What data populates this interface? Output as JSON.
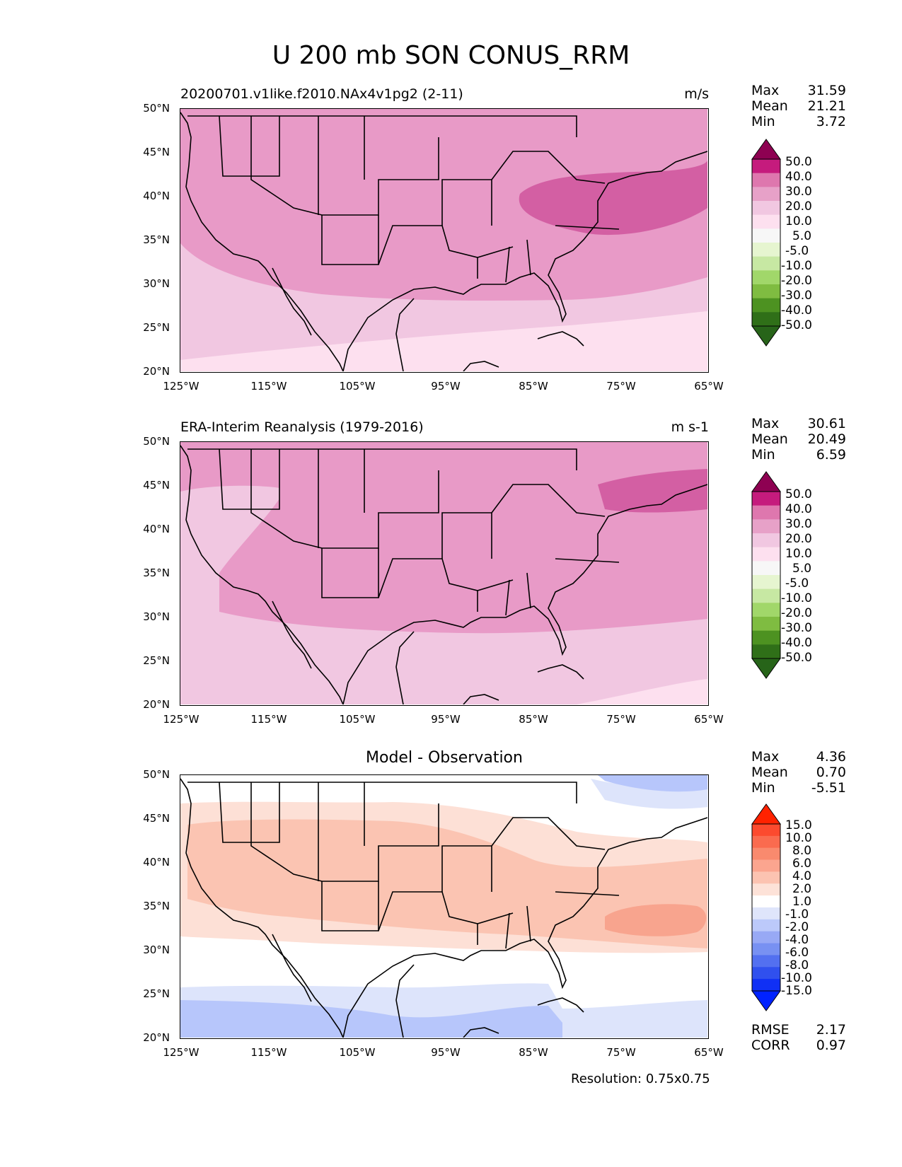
{
  "figure": {
    "title": "U 200 mb SON CONUS_RRM",
    "resolution": "Resolution: 0.75x0.75"
  },
  "axes": {
    "lat_labels": [
      "50°N",
      "45°N",
      "40°N",
      "35°N",
      "30°N",
      "25°N",
      "20°N"
    ],
    "lon_labels": [
      "125°W",
      "115°W",
      "105°W",
      "95°W",
      "85°W",
      "75°W",
      "65°W"
    ],
    "lat_range": [
      20,
      50
    ],
    "lon_range": [
      -125,
      -65
    ]
  },
  "panels": [
    {
      "title_left": "20200701.v1like.f2010.NAx4v1pg2 (2-11)",
      "title_right": "m/s",
      "stats": [
        {
          "k": "Max",
          "v": "31.59"
        },
        {
          "k": "Mean",
          "v": "21.21"
        },
        {
          "k": "Min",
          "v": "3.72"
        }
      ],
      "colorbar": {
        "labels": [
          "50.0",
          "40.0",
          "30.0",
          "20.0",
          "10.0",
          "5.0",
          "-5.0",
          "-10.0",
          "-20.0",
          "-30.0",
          "-40.0",
          "-50.0"
        ],
        "colors": [
          "#8e0152",
          "#c51b7d",
          "#de77ae",
          "#e7a1c8",
          "#f1c7e1",
          "#fde0ef",
          "#f7f7f7",
          "#e6f5d0",
          "#c7e8a3",
          "#a1d76a",
          "#7fbc41",
          "#4d9221",
          "#2f6f18",
          "#276419"
        ]
      },
      "fill_colors": [
        "#fde0ef",
        "#f1c7e1",
        "#e89ac7",
        "#d35fa3"
      ]
    },
    {
      "title_left": "ERA-Interim Reanalysis (1979-2016)",
      "title_right": "m s-1",
      "stats": [
        {
          "k": "Max",
          "v": "30.61"
        },
        {
          "k": "Mean",
          "v": "20.49"
        },
        {
          "k": "Min",
          "v": "6.59"
        }
      ],
      "colorbar": {
        "labels": [
          "50.0",
          "40.0",
          "30.0",
          "20.0",
          "10.0",
          "5.0",
          "-5.0",
          "-10.0",
          "-20.0",
          "-30.0",
          "-40.0",
          "-50.0"
        ],
        "colors": [
          "#8e0152",
          "#c51b7d",
          "#de77ae",
          "#e7a1c8",
          "#f1c7e1",
          "#fde0ef",
          "#f7f7f7",
          "#e6f5d0",
          "#c7e8a3",
          "#a1d76a",
          "#7fbc41",
          "#4d9221",
          "#2f6f18",
          "#276419"
        ]
      },
      "fill_colors": [
        "#fde0ef",
        "#f1c7e1",
        "#e89ac7",
        "#d35fa3"
      ]
    },
    {
      "title_center": "Model - Observation",
      "stats": [
        {
          "k": "Max",
          "v": "4.36"
        },
        {
          "k": "Mean",
          "v": "0.70"
        },
        {
          "k": "Min",
          "v": "-5.51"
        }
      ],
      "extra_stats": [
        {
          "k": "RMSE",
          "v": "2.17"
        },
        {
          "k": "CORR",
          "v": "0.97"
        }
      ],
      "colorbar": {
        "labels": [
          "15.0",
          "10.0",
          "8.0",
          "6.0",
          "4.0",
          "2.0",
          "1.0",
          "-1.0",
          "-2.0",
          "-4.0",
          "-6.0",
          "-8.0",
          "-10.0",
          "-15.0"
        ],
        "colors": [
          "#ff2200",
          "#fc4a2e",
          "#fa6b4f",
          "#f98a6e",
          "#fba58f",
          "#fcc3b1",
          "#fde2d8",
          "#ffffff",
          "#dfe5fb",
          "#bcc9fa",
          "#98a9f5",
          "#7891f2",
          "#5370f0",
          "#3050ee",
          "#1030f5",
          "#0022ff"
        ]
      },
      "fill_colors": [
        "#b7c6fb",
        "#dde4fb",
        "#ffffff",
        "#fde0d6",
        "#fbc4b2",
        "#f8a48e"
      ]
    }
  ]
}
